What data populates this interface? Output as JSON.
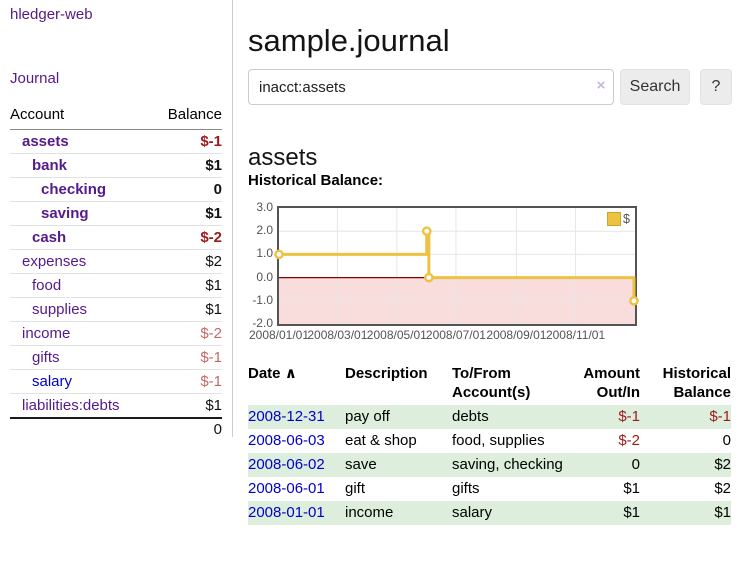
{
  "sidebar": {
    "app_title": "hledger-web",
    "nav": {
      "journal": "Journal"
    },
    "accounts_table": {
      "headers": {
        "account": "Account",
        "balance": "Balance"
      },
      "rows": [
        {
          "name": "assets",
          "balance": "$-1"
        },
        {
          "name": "bank",
          "balance": "$1"
        },
        {
          "name": "checking",
          "balance": "0"
        },
        {
          "name": "saving",
          "balance": "$1"
        },
        {
          "name": "cash",
          "balance": "$-2"
        },
        {
          "name": "expenses",
          "balance": "$2"
        },
        {
          "name": "food",
          "balance": "$1"
        },
        {
          "name": "supplies",
          "balance": "$1"
        },
        {
          "name": "income",
          "balance": "$-2"
        },
        {
          "name": "gifts",
          "balance": "$-1"
        },
        {
          "name": "salary",
          "balance": "$-1"
        },
        {
          "name": "liabilities:debts",
          "balance": "$1"
        }
      ],
      "total": "0"
    }
  },
  "header": {
    "title": "sample.journal"
  },
  "search": {
    "value": "inacct:assets",
    "clear_icon": "×",
    "button_label": "Search",
    "help_label": "?"
  },
  "account_page": {
    "heading": "assets",
    "chart_label": "Historical Balance:"
  },
  "chart_data": {
    "type": "line",
    "title": "Historical Balance:",
    "step": true,
    "ylim": [
      -2.0,
      3.0
    ],
    "y_ticks": [
      "3.0",
      "2.0",
      "1.0",
      "0.0",
      "-1.0",
      "-2.0"
    ],
    "x_ticks": [
      {
        "label": "2008/01/01",
        "f": 0.0
      },
      {
        "label": "2008/03/01",
        "f": 0.164
      },
      {
        "label": "2008/05/01",
        "f": 0.331
      },
      {
        "label": "2008/07/01",
        "f": 0.497
      },
      {
        "label": "2008/09/01",
        "f": 0.667
      },
      {
        "label": "2008/11/01",
        "f": 0.833
      }
    ],
    "series": [
      {
        "name": "$",
        "color": "#edc240",
        "points": [
          {
            "date": "2008-01-01",
            "f": 0.0,
            "value": 1.0
          },
          {
            "date": "2008-06-01",
            "f": 0.415,
            "value": 2.0
          },
          {
            "date": "2008-06-03",
            "f": 0.421,
            "value": 0.0
          },
          {
            "date": "2008-12-31",
            "f": 0.997,
            "value": -1.0
          }
        ]
      }
    ],
    "legend": {
      "label": "$",
      "position": "top-right"
    },
    "grid": true,
    "negative_region_fill": "#f9dcdc",
    "zero_line_color": "#8b0000",
    "grid_color": "#e6e6e6",
    "border_color": "#545454"
  },
  "register": {
    "headers": {
      "date": "Date",
      "sort_indicator": "∧",
      "description": "Description",
      "accounts": "To/From Account(s)",
      "amount": "Amount Out/In",
      "balance": "Historical Balance"
    },
    "rows": [
      {
        "date": "2008-12-31",
        "description": "pay off",
        "accounts": "debts",
        "amount": "$-1",
        "balance": "$-1"
      },
      {
        "date": "2008-06-03",
        "description": "eat & shop",
        "accounts": "food, supplies",
        "amount": "$-2",
        "balance": "0"
      },
      {
        "date": "2008-06-02",
        "description": "save",
        "accounts": "saving, checking",
        "amount": "0",
        "balance": "$2"
      },
      {
        "date": "2008-06-01",
        "description": "gift",
        "accounts": "gifts",
        "amount": "$1",
        "balance": "$2"
      },
      {
        "date": "2008-01-01",
        "description": "income",
        "accounts": "salary",
        "amount": "$1",
        "balance": "$1"
      }
    ]
  },
  "colors": {
    "visited_link_purple": "#551a8b",
    "link_blue": "#0000cc",
    "negative_strong": "#9d1a1a",
    "negative_muted": "#c06a6a",
    "row_highlight_green": "#ddeedd",
    "chart_series_yellow": "#edc240",
    "chart_negative_fill": "#f9dcdc",
    "chart_zero_line": "#8b0000"
  }
}
